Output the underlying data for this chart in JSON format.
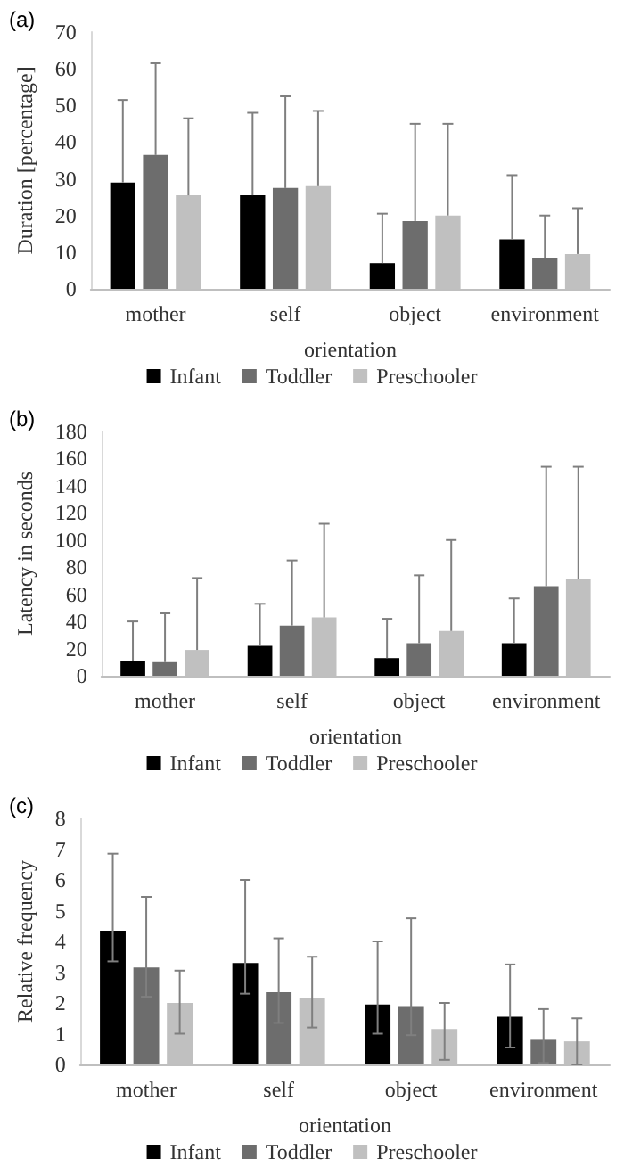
{
  "chart_data": [
    {
      "type": "bar",
      "title": "(a)",
      "xlabel": "orientation",
      "ylabel": "Duration [percentage]",
      "categories": [
        "mother",
        "self",
        "object",
        "environment"
      ],
      "ylim": [
        0,
        70
      ],
      "yticks": [
        0,
        10,
        20,
        30,
        40,
        50,
        60,
        70
      ],
      "grid": false,
      "legend": "bottom",
      "series": [
        {
          "name": "Infant",
          "color": "#000000",
          "values": [
            29,
            25.5,
            7,
            13.5
          ],
          "errors": [
            [
              29,
              51.5
            ],
            [
              25.5,
              48
            ],
            [
              7,
              20.5
            ],
            [
              13.5,
              31
            ]
          ]
        },
        {
          "name": "Toddler",
          "color": "#6d6d6d",
          "values": [
            36.5,
            27.5,
            18.5,
            8.5
          ],
          "errors": [
            [
              36.5,
              61.5
            ],
            [
              27.5,
              52.5
            ],
            [
              18.5,
              45
            ],
            [
              8.5,
              20
            ]
          ]
        },
        {
          "name": "Preschooler",
          "color": "#c0c0c0",
          "values": [
            25.5,
            28,
            20,
            9.5
          ],
          "errors": [
            [
              25.5,
              46.5
            ],
            [
              28,
              48.5
            ],
            [
              20,
              45
            ],
            [
              9.5,
              22
            ]
          ]
        }
      ]
    },
    {
      "type": "bar",
      "title": "(b)",
      "xlabel": "orientation",
      "ylabel": "Latency in seconds",
      "categories": [
        "mother",
        "self",
        "object",
        "environment"
      ],
      "ylim": [
        0,
        180
      ],
      "yticks": [
        0,
        20,
        40,
        60,
        80,
        100,
        120,
        140,
        160,
        180
      ],
      "grid": false,
      "legend": "bottom",
      "series": [
        {
          "name": "Infant",
          "color": "#000000",
          "values": [
            11,
            22,
            13,
            24
          ],
          "errors": [
            [
              11,
              40
            ],
            [
              22,
              53
            ],
            [
              13,
              42
            ],
            [
              24,
              57
            ]
          ]
        },
        {
          "name": "Toddler",
          "color": "#6d6d6d",
          "values": [
            10,
            37,
            24,
            66
          ],
          "errors": [
            [
              10,
              46
            ],
            [
              37,
              85
            ],
            [
              24,
              74
            ],
            [
              66,
              154
            ]
          ]
        },
        {
          "name": "Preschooler",
          "color": "#c0c0c0",
          "values": [
            19,
            43,
            33,
            71
          ],
          "errors": [
            [
              19,
              72
            ],
            [
              43,
              112
            ],
            [
              33,
              100
            ],
            [
              71,
              154
            ]
          ]
        }
      ]
    },
    {
      "type": "bar",
      "title": "(c)",
      "xlabel": "orientation",
      "ylabel": "Relative frequency",
      "categories": [
        "mother",
        "self",
        "object",
        "environment"
      ],
      "ylim": [
        0,
        8
      ],
      "yticks": [
        0,
        1,
        2,
        3,
        4,
        5,
        6,
        7,
        8
      ],
      "grid": false,
      "legend": "bottom",
      "series": [
        {
          "name": "Infant",
          "color": "#000000",
          "values": [
            4.35,
            3.3,
            1.95,
            1.55
          ],
          "errors": [
            [
              3.35,
              6.85
            ],
            [
              2.3,
              6.0
            ],
            [
              1.0,
              4.0
            ],
            [
              0.55,
              3.25
            ]
          ]
        },
        {
          "name": "Toddler",
          "color": "#6d6d6d",
          "values": [
            3.15,
            2.35,
            1.9,
            0.8
          ],
          "errors": [
            [
              2.2,
              5.45
            ],
            [
              1.35,
              4.1
            ],
            [
              0.95,
              4.75
            ],
            [
              0.05,
              1.8
            ]
          ]
        },
        {
          "name": "Preschooler",
          "color": "#c0c0c0",
          "values": [
            2.0,
            2.15,
            1.15,
            0.75
          ],
          "errors": [
            [
              1.0,
              3.05
            ],
            [
              1.2,
              3.5
            ],
            [
              0.15,
              2.0
            ],
            [
              0,
              1.5
            ]
          ]
        }
      ]
    }
  ]
}
